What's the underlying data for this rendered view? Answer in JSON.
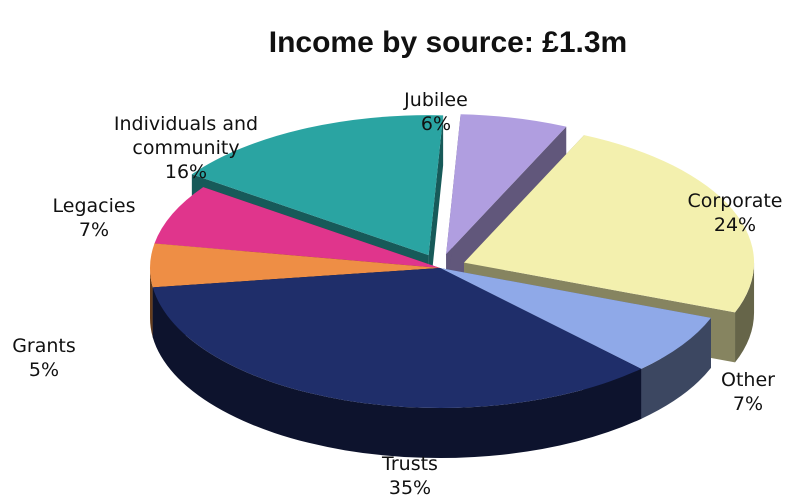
{
  "chart_data": {
    "type": "pie",
    "title": "Income by source: £1.3m",
    "unit": "%",
    "slices": [
      {
        "label": "Jubilee",
        "label_lines": [
          "Jubilee"
        ],
        "value": 6,
        "color": "#b09ee0",
        "exploded": true
      },
      {
        "label": "Corporate",
        "label_lines": [
          "Corporate"
        ],
        "value": 24,
        "color": "#f3f0ae",
        "exploded": true
      },
      {
        "label": "Other",
        "label_lines": [
          "Other"
        ],
        "value": 7,
        "color": "#8fa9e8",
        "exploded": false
      },
      {
        "label": "Trusts",
        "label_lines": [
          "Trusts"
        ],
        "value": 35,
        "color": "#1f2e6a",
        "exploded": false
      },
      {
        "label": "Grants",
        "label_lines": [
          "Grants"
        ],
        "value": 5,
        "color": "#ee8e45",
        "exploded": false
      },
      {
        "label": "Legacies",
        "label_lines": [
          "Legacies"
        ],
        "value": 7,
        "color": "#e0358c",
        "exploded": false
      },
      {
        "label": "Individuals and community",
        "label_lines": [
          "Individuals and",
          "community"
        ],
        "value": 16,
        "color": "#2aa4a2",
        "exploded": true
      }
    ],
    "legend": "none",
    "view": "3d-exploded"
  }
}
